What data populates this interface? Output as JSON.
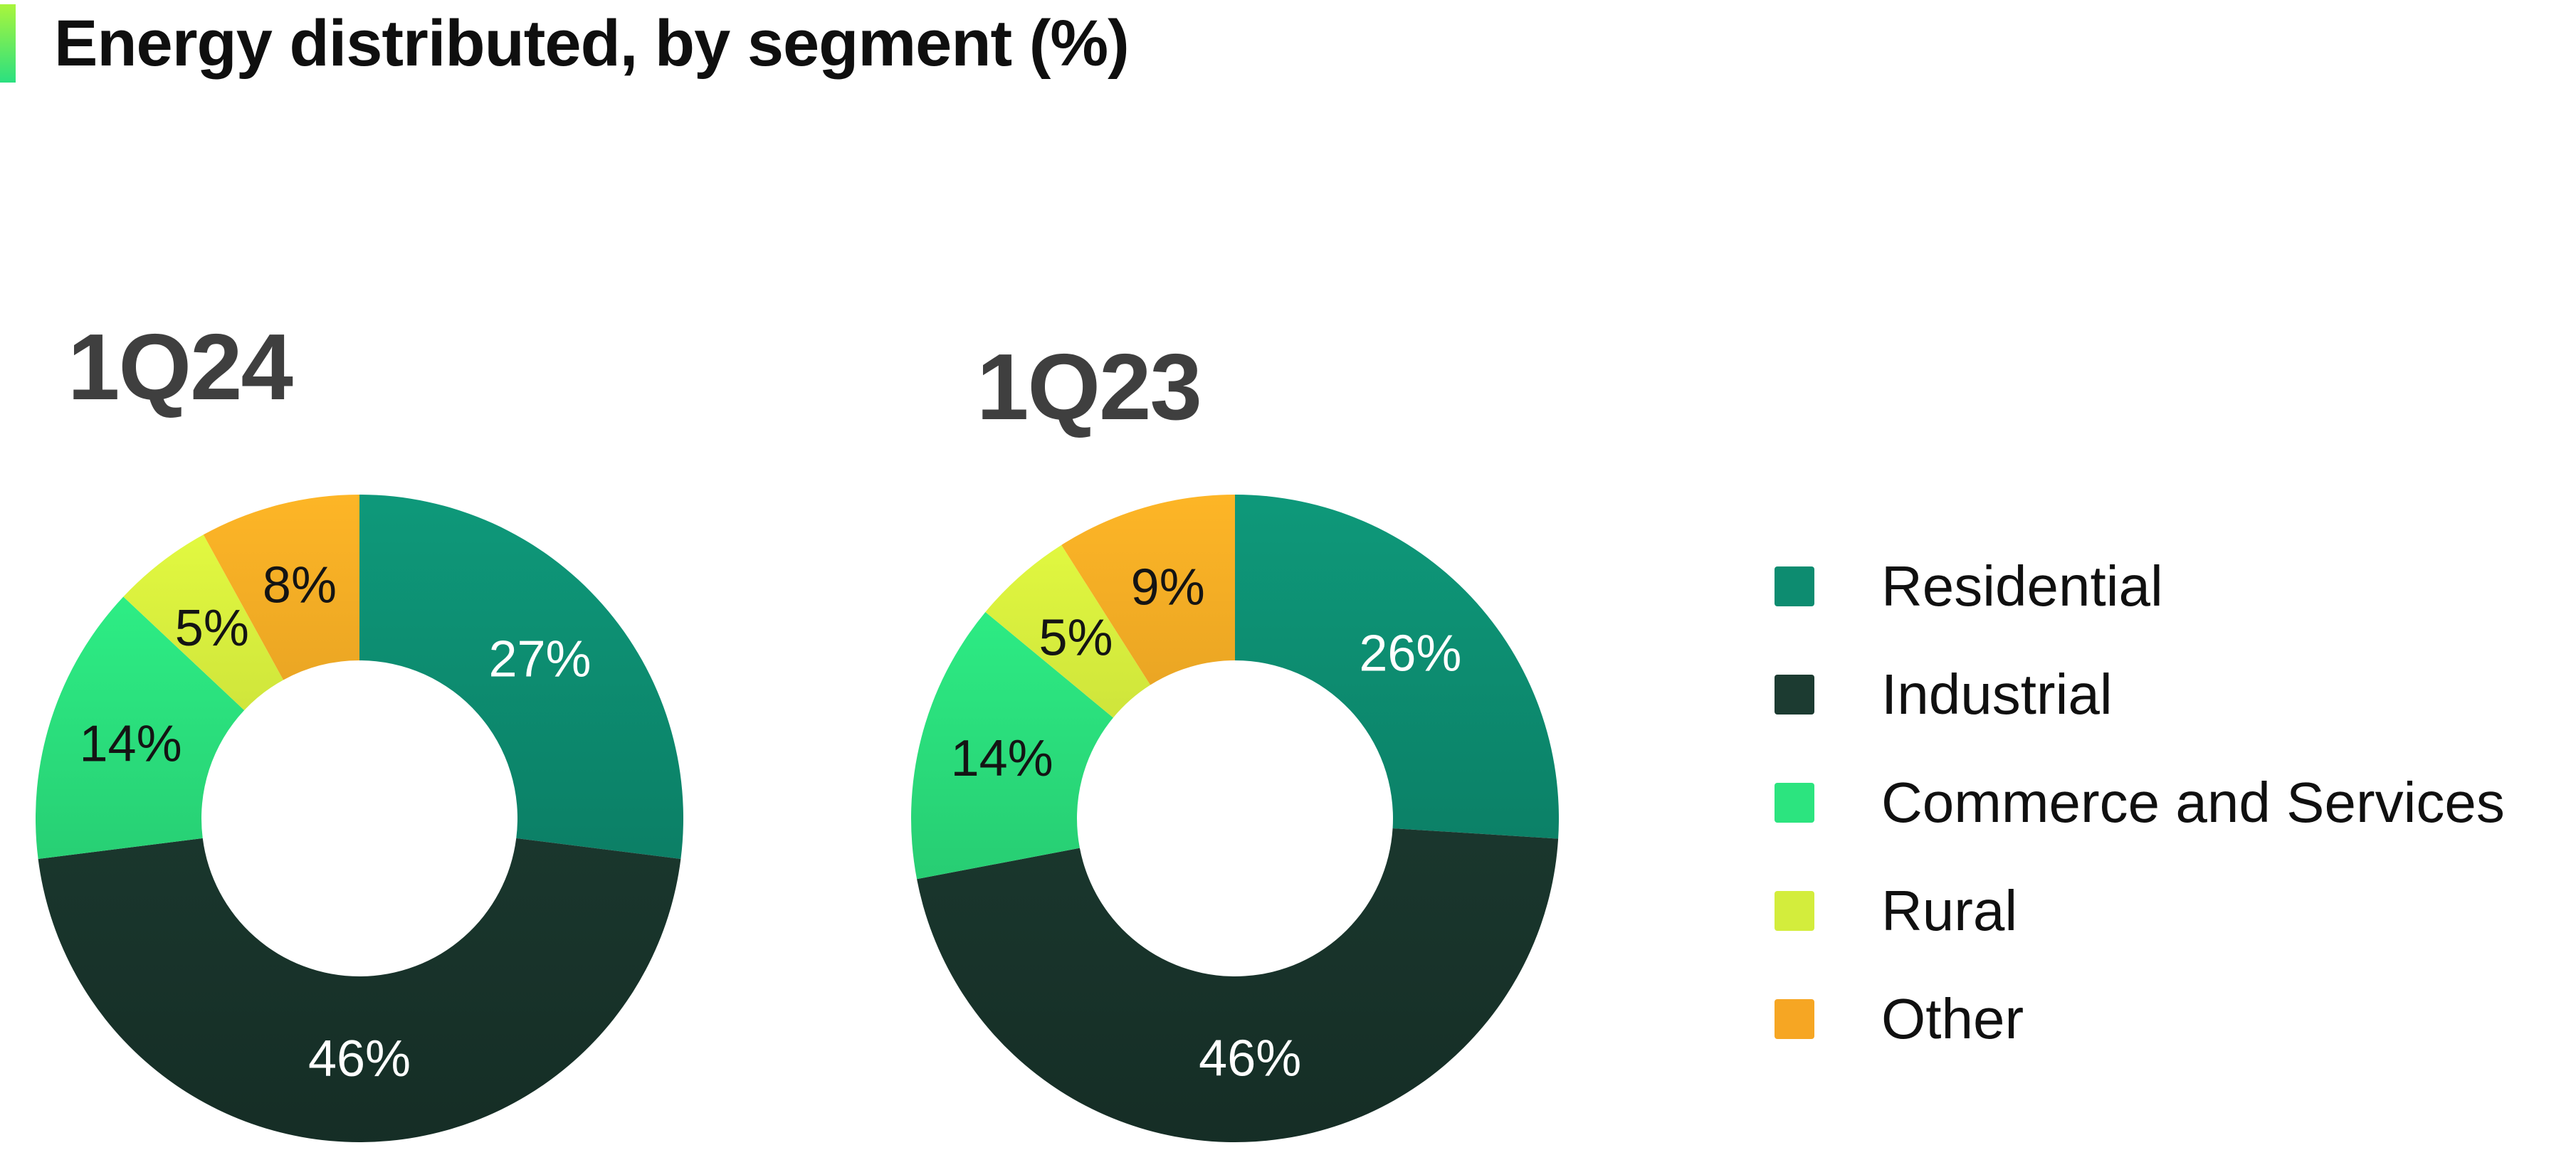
{
  "title": {
    "text": "Energy distributed, by segment (%)",
    "accent_bar_colors": [
      "#a9f53c",
      "#2be080"
    ]
  },
  "legend": {
    "position": "right",
    "items": [
      {
        "label": "Residential",
        "color": "#0d8c70"
      },
      {
        "label": "Industrial",
        "color": "#1c3b31"
      },
      {
        "label": "Commerce and Services",
        "color": "#2ce47f"
      },
      {
        "label": "Rural",
        "color": "#d3ed3c"
      },
      {
        "label": "Other",
        "color": "#f6a623"
      }
    ]
  },
  "chart_data": [
    {
      "type": "pie",
      "subtype": "donut",
      "title": "1Q24",
      "categories": [
        "Residential",
        "Industrial",
        "Commerce and Services",
        "Rural",
        "Other"
      ],
      "values": [
        27,
        46,
        14,
        5,
        8
      ],
      "labels": [
        "27%",
        "46%",
        "14%",
        "5%",
        "8%"
      ],
      "colors": [
        "#0d8c70",
        "#1c3b31",
        "#2ce47f",
        "#d3ed3c",
        "#f6a623"
      ],
      "label_colors": [
        "#ffffff",
        "#ffffff",
        "#141414",
        "#141414",
        "#141414"
      ],
      "start_angle_deg": 0,
      "direction": "clockwise",
      "legend": false
    },
    {
      "type": "pie",
      "subtype": "donut",
      "title": "1Q23",
      "categories": [
        "Residential",
        "Industrial",
        "Commerce and Services",
        "Rural",
        "Other"
      ],
      "values": [
        26,
        46,
        14,
        5,
        9
      ],
      "labels": [
        "26%",
        "46%",
        "14%",
        "5%",
        "9%"
      ],
      "colors": [
        "#0d8c70",
        "#1c3b31",
        "#2ce47f",
        "#d3ed3c",
        "#f6a623"
      ],
      "label_colors": [
        "#ffffff",
        "#ffffff",
        "#141414",
        "#141414",
        "#141414"
      ],
      "start_angle_deg": 0,
      "direction": "clockwise",
      "legend": false
    }
  ]
}
